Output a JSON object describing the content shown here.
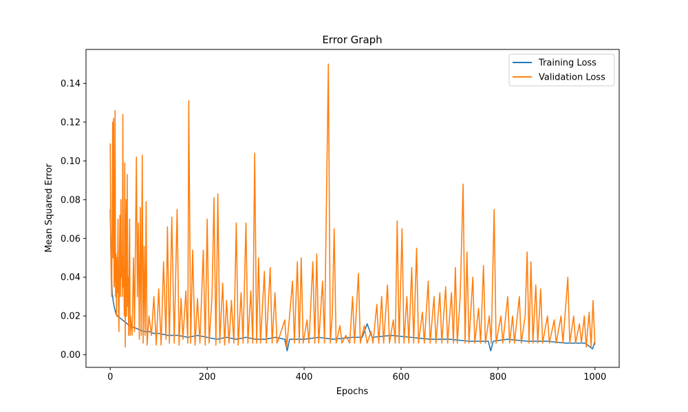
{
  "chart_data": {
    "type": "line",
    "title": "Error Graph",
    "xlabel": "Epochs",
    "ylabel": "Mean Squared Error",
    "xlim": [
      -50,
      1050
    ],
    "ylim": [
      -0.0065,
      0.1575
    ],
    "x_ticks": [
      0,
      200,
      400,
      600,
      800,
      1000
    ],
    "x_tick_labels": [
      "0",
      "200",
      "400",
      "600",
      "800",
      "1000"
    ],
    "y_ticks": [
      0.0,
      0.02,
      0.04,
      0.06,
      0.08,
      0.1,
      0.12,
      0.14
    ],
    "y_tick_labels": [
      "0.00",
      "0.02",
      "0.04",
      "0.06",
      "0.08",
      "0.10",
      "0.12",
      "0.14"
    ],
    "grid": false,
    "legend_position": "top-right",
    "series": [
      {
        "name": "Training Loss",
        "color": "#1f77b4",
        "points": [
          [
            0,
            0.075
          ],
          [
            2,
            0.045
          ],
          [
            4,
            0.032
          ],
          [
            6,
            0.028
          ],
          [
            8,
            0.025
          ],
          [
            10,
            0.023
          ],
          [
            12,
            0.021
          ],
          [
            15,
            0.02
          ],
          [
            20,
            0.019
          ],
          [
            25,
            0.018
          ],
          [
            30,
            0.017
          ],
          [
            35,
            0.016
          ],
          [
            40,
            0.015
          ],
          [
            50,
            0.014
          ],
          [
            60,
            0.013
          ],
          [
            70,
            0.012
          ],
          [
            80,
            0.012
          ],
          [
            90,
            0.011
          ],
          [
            100,
            0.011
          ],
          [
            120,
            0.01
          ],
          [
            140,
            0.01
          ],
          [
            160,
            0.009
          ],
          [
            180,
            0.01
          ],
          [
            200,
            0.009
          ],
          [
            220,
            0.008
          ],
          [
            240,
            0.009
          ],
          [
            260,
            0.008
          ],
          [
            280,
            0.009
          ],
          [
            300,
            0.008
          ],
          [
            320,
            0.008
          ],
          [
            340,
            0.009
          ],
          [
            360,
            0.008
          ],
          [
            365,
            0.002
          ],
          [
            370,
            0.008
          ],
          [
            400,
            0.008
          ],
          [
            430,
            0.009
          ],
          [
            460,
            0.008
          ],
          [
            500,
            0.009
          ],
          [
            520,
            0.009
          ],
          [
            530,
            0.016
          ],
          [
            540,
            0.009
          ],
          [
            580,
            0.01
          ],
          [
            620,
            0.009
          ],
          [
            660,
            0.008
          ],
          [
            700,
            0.008
          ],
          [
            740,
            0.007
          ],
          [
            780,
            0.007
          ],
          [
            785,
            0.002
          ],
          [
            790,
            0.007
          ],
          [
            820,
            0.008
          ],
          [
            860,
            0.007
          ],
          [
            900,
            0.007
          ],
          [
            940,
            0.006
          ],
          [
            980,
            0.006
          ],
          [
            995,
            0.003
          ],
          [
            1000,
            0.007
          ]
        ]
      },
      {
        "name": "Validation Loss",
        "color": "#ff7f0e",
        "points": [
          [
            0,
            0.109
          ],
          [
            1,
            0.06
          ],
          [
            2,
            0.04
          ],
          [
            3,
            0.03
          ],
          [
            4,
            0.07
          ],
          [
            5,
            0.12
          ],
          [
            6,
            0.05
          ],
          [
            7,
            0.122
          ],
          [
            8,
            0.035
          ],
          [
            9,
            0.04
          ],
          [
            10,
            0.126
          ],
          [
            11,
            0.03
          ],
          [
            12,
            0.052
          ],
          [
            13,
            0.02
          ],
          [
            14,
            0.05
          ],
          [
            15,
            0.032
          ],
          [
            16,
            0.07
          ],
          [
            17,
            0.026
          ],
          [
            18,
            0.012
          ],
          [
            19,
            0.05
          ],
          [
            20,
            0.072
          ],
          [
            21,
            0.03
          ],
          [
            22,
            0.08
          ],
          [
            23,
            0.04
          ],
          [
            24,
            0.05
          ],
          [
            25,
            0.03
          ],
          [
            26,
            0.124
          ],
          [
            27,
            0.035
          ],
          [
            28,
            0.045
          ],
          [
            29,
            0.02
          ],
          [
            30,
            0.099
          ],
          [
            31,
            0.004
          ],
          [
            32,
            0.06
          ],
          [
            33,
            0.08
          ],
          [
            34,
            0.02
          ],
          [
            35,
            0.093
          ],
          [
            36,
            0.025
          ],
          [
            37,
            0.04
          ],
          [
            38,
            0.01
          ],
          [
            39,
            0.05
          ],
          [
            40,
            0.07
          ],
          [
            41,
            0.01
          ],
          [
            42,
            0.02
          ],
          [
            45,
            0.01
          ],
          [
            48,
            0.05
          ],
          [
            50,
            0.012
          ],
          [
            52,
            0.057
          ],
          [
            54,
            0.102
          ],
          [
            56,
            0.03
          ],
          [
            58,
            0.068
          ],
          [
            60,
            0.008
          ],
          [
            62,
            0.076
          ],
          [
            64,
            0.01
          ],
          [
            66,
            0.103
          ],
          [
            68,
            0.006
          ],
          [
            70,
            0.056
          ],
          [
            72,
            0.01
          ],
          [
            74,
            0.079
          ],
          [
            76,
            0.005
          ],
          [
            80,
            0.02
          ],
          [
            85,
            0.01
          ],
          [
            90,
            0.03
          ],
          [
            95,
            0.005
          ],
          [
            100,
            0.034
          ],
          [
            105,
            0.005
          ],
          [
            110,
            0.048
          ],
          [
            115,
            0.008
          ],
          [
            118,
            0.066
          ],
          [
            122,
            0.006
          ],
          [
            127,
            0.071
          ],
          [
            132,
            0.006
          ],
          [
            138,
            0.075
          ],
          [
            142,
            0.005
          ],
          [
            146,
            0.029
          ],
          [
            150,
            0.008
          ],
          [
            156,
            0.033
          ],
          [
            160,
            0.006
          ],
          [
            162,
            0.131
          ],
          [
            166,
            0.006
          ],
          [
            170,
            0.054
          ],
          [
            175,
            0.005
          ],
          [
            180,
            0.029
          ],
          [
            185,
            0.006
          ],
          [
            192,
            0.054
          ],
          [
            196,
            0.005
          ],
          [
            200,
            0.07
          ],
          [
            204,
            0.006
          ],
          [
            210,
            0.03
          ],
          [
            214,
            0.081
          ],
          [
            218,
            0.005
          ],
          [
            222,
            0.083
          ],
          [
            226,
            0.006
          ],
          [
            232,
            0.037
          ],
          [
            236,
            0.005
          ],
          [
            240,
            0.028
          ],
          [
            245,
            0.006
          ],
          [
            250,
            0.028
          ],
          [
            255,
            0.006
          ],
          [
            260,
            0.068
          ],
          [
            264,
            0.005
          ],
          [
            270,
            0.032
          ],
          [
            274,
            0.006
          ],
          [
            280,
            0.068
          ],
          [
            284,
            0.006
          ],
          [
            290,
            0.033
          ],
          [
            294,
            0.006
          ],
          [
            298,
            0.104
          ],
          [
            302,
            0.006
          ],
          [
            306,
            0.05
          ],
          [
            310,
            0.006
          ],
          [
            318,
            0.043
          ],
          [
            322,
            0.006
          ],
          [
            330,
            0.045
          ],
          [
            334,
            0.006
          ],
          [
            340,
            0.032
          ],
          [
            344,
            0.006
          ],
          [
            350,
            0.01
          ],
          [
            360,
            0.018
          ],
          [
            364,
            0.004
          ],
          [
            370,
            0.02
          ],
          [
            376,
            0.038
          ],
          [
            380,
            0.006
          ],
          [
            386,
            0.048
          ],
          [
            390,
            0.006
          ],
          [
            394,
            0.05
          ],
          [
            398,
            0.006
          ],
          [
            406,
            0.018
          ],
          [
            410,
            0.006
          ],
          [
            418,
            0.048
          ],
          [
            422,
            0.006
          ],
          [
            426,
            0.052
          ],
          [
            430,
            0.006
          ],
          [
            438,
            0.038
          ],
          [
            442,
            0.006
          ],
          [
            450,
            0.15
          ],
          [
            454,
            0.006
          ],
          [
            458,
            0.02
          ],
          [
            462,
            0.065
          ],
          [
            466,
            0.006
          ],
          [
            474,
            0.015
          ],
          [
            478,
            0.006
          ],
          [
            486,
            0.01
          ],
          [
            494,
            0.006
          ],
          [
            500,
            0.03
          ],
          [
            504,
            0.006
          ],
          [
            512,
            0.042
          ],
          [
            516,
            0.006
          ],
          [
            524,
            0.015
          ],
          [
            530,
            0.006
          ],
          [
            538,
            0.012
          ],
          [
            542,
            0.006
          ],
          [
            550,
            0.026
          ],
          [
            554,
            0.006
          ],
          [
            560,
            0.03
          ],
          [
            564,
            0.006
          ],
          [
            572,
            0.036
          ],
          [
            576,
            0.006
          ],
          [
            584,
            0.018
          ],
          [
            588,
            0.006
          ],
          [
            592,
            0.069
          ],
          [
            596,
            0.006
          ],
          [
            602,
            0.065
          ],
          [
            606,
            0.006
          ],
          [
            612,
            0.03
          ],
          [
            616,
            0.006
          ],
          [
            622,
            0.045
          ],
          [
            626,
            0.006
          ],
          [
            632,
            0.055
          ],
          [
            636,
            0.006
          ],
          [
            644,
            0.022
          ],
          [
            648,
            0.006
          ],
          [
            656,
            0.038
          ],
          [
            660,
            0.006
          ],
          [
            668,
            0.03
          ],
          [
            672,
            0.006
          ],
          [
            680,
            0.032
          ],
          [
            684,
            0.006
          ],
          [
            692,
            0.035
          ],
          [
            696,
            0.006
          ],
          [
            704,
            0.032
          ],
          [
            708,
            0.006
          ],
          [
            712,
            0.045
          ],
          [
            716,
            0.006
          ],
          [
            722,
            0.03
          ],
          [
            728,
            0.088
          ],
          [
            732,
            0.006
          ],
          [
            736,
            0.053
          ],
          [
            740,
            0.006
          ],
          [
            748,
            0.04
          ],
          [
            752,
            0.006
          ],
          [
            760,
            0.024
          ],
          [
            764,
            0.006
          ],
          [
            770,
            0.046
          ],
          [
            774,
            0.006
          ],
          [
            782,
            0.02
          ],
          [
            786,
            0.006
          ],
          [
            792,
            0.075
          ],
          [
            796,
            0.006
          ],
          [
            806,
            0.02
          ],
          [
            810,
            0.006
          ],
          [
            820,
            0.03
          ],
          [
            824,
            0.006
          ],
          [
            830,
            0.02
          ],
          [
            834,
            0.006
          ],
          [
            844,
            0.03
          ],
          [
            848,
            0.006
          ],
          [
            856,
            0.02
          ],
          [
            860,
            0.053
          ],
          [
            864,
            0.006
          ],
          [
            868,
            0.048
          ],
          [
            872,
            0.006
          ],
          [
            878,
            0.036
          ],
          [
            882,
            0.006
          ],
          [
            888,
            0.034
          ],
          [
            892,
            0.006
          ],
          [
            902,
            0.02
          ],
          [
            906,
            0.006
          ],
          [
            916,
            0.018
          ],
          [
            920,
            0.006
          ],
          [
            930,
            0.02
          ],
          [
            934,
            0.006
          ],
          [
            944,
            0.04
          ],
          [
            948,
            0.006
          ],
          [
            956,
            0.02
          ],
          [
            960,
            0.006
          ],
          [
            968,
            0.016
          ],
          [
            972,
            0.006
          ],
          [
            978,
            0.02
          ],
          [
            982,
            0.004
          ],
          [
            988,
            0.022
          ],
          [
            992,
            0.004
          ],
          [
            996,
            0.028
          ],
          [
            1000,
            0.005
          ]
        ]
      }
    ]
  }
}
